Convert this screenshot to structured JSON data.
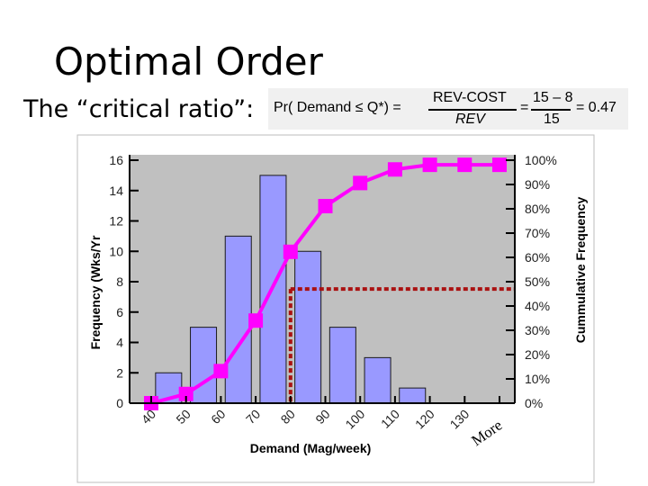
{
  "slide": {
    "title": "Optimal Order",
    "ratio_label": "The “critical ratio”:"
  },
  "formula": {
    "lhs": "Pr( Demand ≤ Q*) =",
    "num1": "REV-COST",
    "den1": "REV",
    "eq2": "=",
    "num2": "15 – 8",
    "den2": "15",
    "eq3": "= 0.47"
  },
  "chart_data": {
    "type": "bar",
    "categories": [
      "40",
      "50",
      "60",
      "70",
      "80",
      "90",
      "100",
      "110",
      "120",
      "130",
      "More"
    ],
    "series": [
      {
        "name": "Frequency",
        "type": "bar",
        "color": "#9999ff",
        "values": [
          0,
          2,
          5,
          11,
          15,
          10,
          5,
          3,
          1,
          0,
          0
        ]
      },
      {
        "name": "Cumulative %",
        "type": "line",
        "color": "#ff00ff",
        "values": [
          0,
          3.8,
          13.2,
          34.0,
          62.3,
          81.1,
          90.6,
          96.2,
          98.1,
          98.1,
          98.1
        ]
      }
    ],
    "xlabel": "Demand (Mag/week)",
    "ylabel": "Frequency (Wks/Yr",
    "y2label": "Cummulative Frequency",
    "ylim": [
      0,
      16
    ],
    "y2lim": [
      0,
      100
    ],
    "yticks": [
      "0",
      "2",
      "4",
      "6",
      "8",
      "10",
      "12",
      "14",
      "16"
    ],
    "y2ticks": [
      "0%",
      "10%",
      "20%",
      "30%",
      "40%",
      "50%",
      "60%",
      "70%",
      "80%",
      "90%",
      "100%"
    ],
    "reference": {
      "value_pct": 47,
      "x_category": "80",
      "color": "#aa1111"
    },
    "plot_background": "#c0c0c0",
    "grid": false
  }
}
